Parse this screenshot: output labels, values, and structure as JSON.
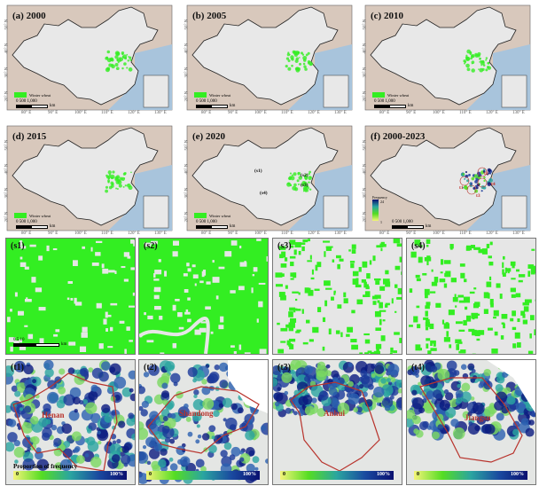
{
  "maps": [
    {
      "label": "(a) 2000",
      "legend": "Winter wheat"
    },
    {
      "label": "(b) 2005",
      "legend": "Winter wheat"
    },
    {
      "label": "(c) 2010",
      "legend": "Winter wheat"
    },
    {
      "label": "(d) 2015",
      "legend": "Winter wheat"
    },
    {
      "label": "(e) 2020",
      "legend": "Winter wheat",
      "markers": [
        "(s1)",
        "(s2)",
        "(s3)",
        "(s4)"
      ]
    },
    {
      "label": "(f) 2000-2023",
      "frequency_legend": {
        "title": "Frequency",
        "max": "24",
        "min": "1"
      },
      "markers": [
        "t1",
        "t2",
        "t3",
        "t4"
      ]
    }
  ],
  "lon_ticks": [
    "80° E",
    "90° E",
    "100° E",
    "110° E",
    "120° E",
    "130° E"
  ],
  "lat_ticks": [
    "50° N",
    "40° N",
    "30° N",
    "20° N"
  ],
  "scale": {
    "ticks": "0   500  1,000",
    "unit": "km"
  },
  "samples": [
    {
      "label": "(s1)",
      "scale": {
        "ticks": "0      5      10",
        "unit": "km"
      }
    },
    {
      "label": "(s2)"
    },
    {
      "label": "(s3)"
    },
    {
      "label": "(s4)"
    }
  ],
  "provinces": [
    {
      "label": "(t1)",
      "name": "Henan"
    },
    {
      "label": "(t2)",
      "name": "Shandong"
    },
    {
      "label": "(t3)",
      "name": "Anhui"
    },
    {
      "label": "(t4)",
      "name": "Jiangsu"
    }
  ],
  "colorbar": {
    "title": "Proportion of frequency",
    "min": "0",
    "max": "100%"
  },
  "colors": {
    "wheat": "#33ee22",
    "land": "#e8e8e8",
    "background": "#d8c8bc",
    "sea": "#a8c4dc",
    "boundary": "#b8332c"
  }
}
